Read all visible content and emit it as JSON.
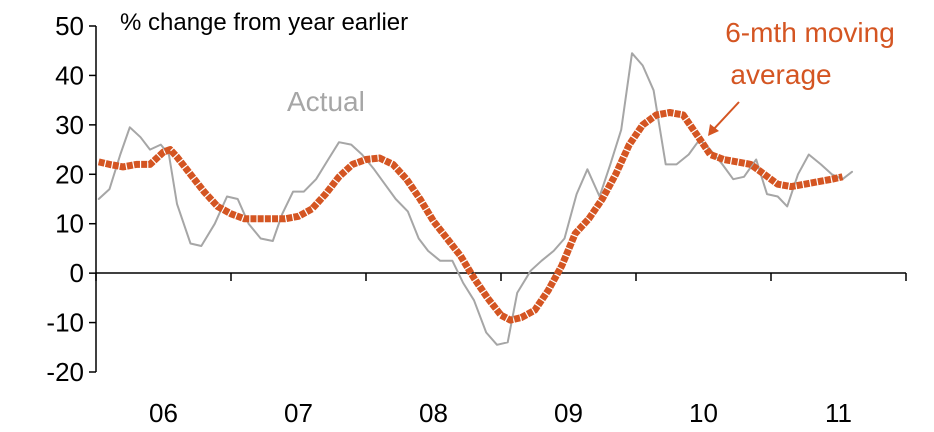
{
  "chart_data": {
    "type": "line",
    "ylabel": "% change from year earlier",
    "ylim": [
      -20,
      50
    ],
    "yticks": [
      -20,
      -10,
      0,
      10,
      20,
      30,
      40,
      50
    ],
    "x_range": [
      2005.5,
      2011.5
    ],
    "x_category_labels": [
      {
        "label": "06",
        "at": 2006.0
      },
      {
        "label": "07",
        "at": 2007.0
      },
      {
        "label": "08",
        "at": 2008.0
      },
      {
        "label": "09",
        "at": 2009.0
      },
      {
        "label": "10",
        "at": 2010.0
      },
      {
        "label": "11",
        "at": 2011.0
      }
    ],
    "x_tick_marks": [
      2005.5,
      2006.5,
      2007.5,
      2008.5,
      2009.5,
      2010.5,
      2011.5
    ],
    "grid": false,
    "series": [
      {
        "name": "Actual",
        "color": "#a6a6a6",
        "points": [
          [
            2005.52,
            15
          ],
          [
            2005.6,
            17
          ],
          [
            2005.68,
            24
          ],
          [
            2005.75,
            29.5
          ],
          [
            2005.83,
            27.5
          ],
          [
            2005.9,
            25
          ],
          [
            2005.98,
            26
          ],
          [
            2006.04,
            24
          ],
          [
            2006.1,
            14
          ],
          [
            2006.2,
            6
          ],
          [
            2006.28,
            5.5
          ],
          [
            2006.38,
            10
          ],
          [
            2006.47,
            15.5
          ],
          [
            2006.55,
            15
          ],
          [
            2006.63,
            10
          ],
          [
            2006.72,
            7
          ],
          [
            2006.81,
            6.5
          ],
          [
            2006.88,
            12
          ],
          [
            2006.96,
            16.5
          ],
          [
            2007.04,
            16.5
          ],
          [
            2007.13,
            19
          ],
          [
            2007.22,
            23
          ],
          [
            2007.3,
            26.5
          ],
          [
            2007.39,
            26
          ],
          [
            2007.47,
            24
          ],
          [
            2007.56,
            21
          ],
          [
            2007.64,
            18
          ],
          [
            2007.72,
            15
          ],
          [
            2007.81,
            12.5
          ],
          [
            2007.89,
            7
          ],
          [
            2007.96,
            4.5
          ],
          [
            2008.05,
            2.5
          ],
          [
            2008.14,
            2.5
          ],
          [
            2008.22,
            -2
          ],
          [
            2008.3,
            -5.5
          ],
          [
            2008.39,
            -12
          ],
          [
            2008.47,
            -14.5
          ],
          [
            2008.55,
            -14
          ],
          [
            2008.62,
            -4
          ],
          [
            2008.72,
            0.5
          ],
          [
            2008.8,
            2.5
          ],
          [
            2008.89,
            4.5
          ],
          [
            2008.97,
            7
          ],
          [
            2009.06,
            16
          ],
          [
            2009.14,
            21
          ],
          [
            2009.23,
            15.5
          ],
          [
            2009.31,
            22
          ],
          [
            2009.39,
            29
          ],
          [
            2009.47,
            44.5
          ],
          [
            2009.55,
            42
          ],
          [
            2009.63,
            37
          ],
          [
            2009.72,
            22
          ],
          [
            2009.8,
            22
          ],
          [
            2009.89,
            24
          ],
          [
            2009.97,
            27
          ],
          [
            2010.05,
            25
          ],
          [
            2010.14,
            22
          ],
          [
            2010.22,
            19
          ],
          [
            2010.3,
            19.5
          ],
          [
            2010.39,
            23
          ],
          [
            2010.47,
            16
          ],
          [
            2010.55,
            15.5
          ],
          [
            2010.62,
            13.5
          ],
          [
            2010.7,
            20
          ],
          [
            2010.78,
            24
          ],
          [
            2010.87,
            22
          ],
          [
            2010.95,
            20
          ],
          [
            2011.03,
            19
          ],
          [
            2011.1,
            20.5
          ]
        ]
      },
      {
        "name": "6-mth moving average",
        "color": "#d45522",
        "points": [
          [
            2005.52,
            22.5
          ],
          [
            2005.6,
            22
          ],
          [
            2005.7,
            21.5
          ],
          [
            2005.8,
            22
          ],
          [
            2005.9,
            22
          ],
          [
            2006.0,
            24.5
          ],
          [
            2006.05,
            25
          ],
          [
            2006.1,
            23.5
          ],
          [
            2006.2,
            20
          ],
          [
            2006.3,
            16.5
          ],
          [
            2006.4,
            13.5
          ],
          [
            2006.5,
            12
          ],
          [
            2006.6,
            11
          ],
          [
            2006.7,
            11
          ],
          [
            2006.8,
            11
          ],
          [
            2006.9,
            11
          ],
          [
            2007.0,
            11.5
          ],
          [
            2007.1,
            13
          ],
          [
            2007.2,
            16
          ],
          [
            2007.3,
            19.5
          ],
          [
            2007.4,
            22
          ],
          [
            2007.5,
            23
          ],
          [
            2007.6,
            23.3
          ],
          [
            2007.7,
            22
          ],
          [
            2007.8,
            19
          ],
          [
            2007.9,
            15
          ],
          [
            2008.0,
            10.5
          ],
          [
            2008.1,
            7
          ],
          [
            2008.2,
            3.5
          ],
          [
            2008.3,
            -1
          ],
          [
            2008.4,
            -5
          ],
          [
            2008.5,
            -8.5
          ],
          [
            2008.57,
            -9.5
          ],
          [
            2008.65,
            -9
          ],
          [
            2008.75,
            -7.5
          ],
          [
            2008.85,
            -3.5
          ],
          [
            2008.95,
            1.5
          ],
          [
            2009.05,
            8
          ],
          [
            2009.15,
            11
          ],
          [
            2009.25,
            15
          ],
          [
            2009.35,
            20
          ],
          [
            2009.45,
            26
          ],
          [
            2009.55,
            30
          ],
          [
            2009.65,
            32
          ],
          [
            2009.75,
            32.5
          ],
          [
            2009.85,
            32
          ],
          [
            2009.95,
            28
          ],
          [
            2010.05,
            24
          ],
          [
            2010.15,
            23
          ],
          [
            2010.25,
            22.5
          ],
          [
            2010.35,
            22
          ],
          [
            2010.45,
            20
          ],
          [
            2010.55,
            18
          ],
          [
            2010.65,
            17.5
          ],
          [
            2010.75,
            18
          ],
          [
            2010.85,
            18.5
          ],
          [
            2010.95,
            19
          ],
          [
            2011.03,
            19.5
          ]
        ]
      }
    ],
    "annotations": [
      {
        "text": "Actual",
        "color": "#a6a6a6"
      },
      {
        "lines": [
          "6-mth moving",
          "average"
        ],
        "color": "#d45522"
      }
    ]
  }
}
